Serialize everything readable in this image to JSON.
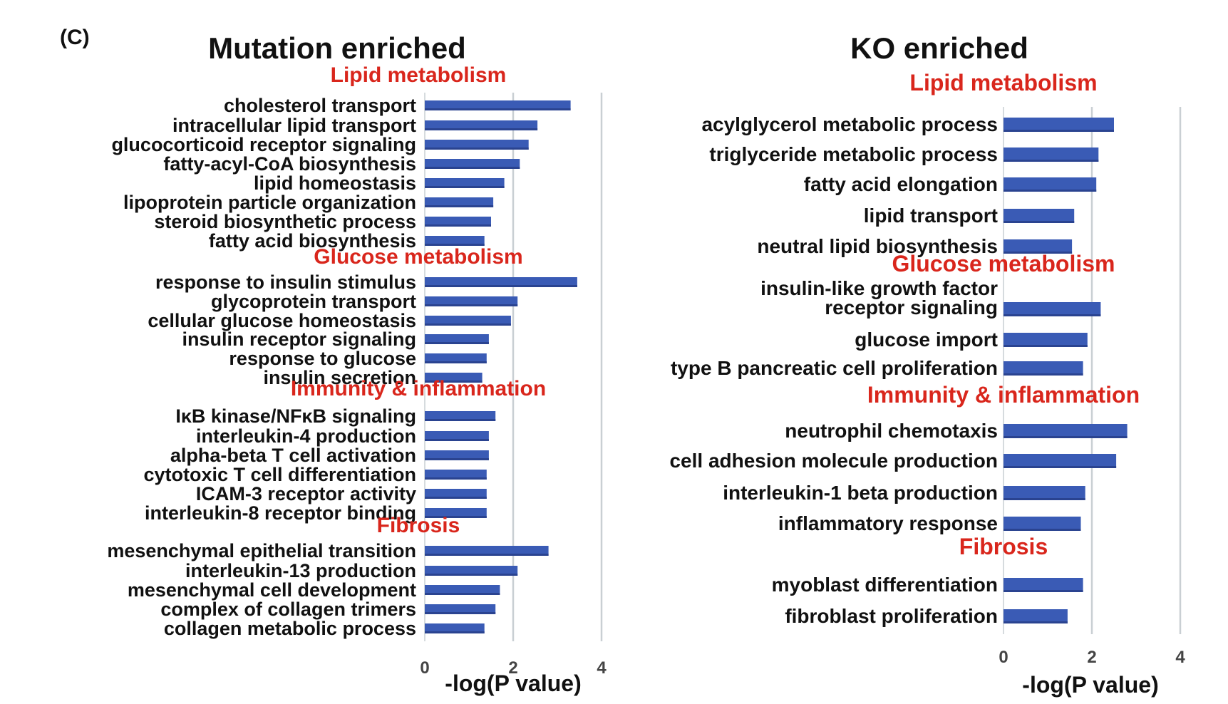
{
  "panel_label": "(C)",
  "colors": {
    "bar": "#3a5bb5",
    "category": "#d9261c",
    "axis": "#c9cfd3",
    "text": "#111111"
  },
  "chart_data": [
    {
      "type": "bar",
      "orientation": "horizontal",
      "title": "Mutation enriched",
      "xlabel": "-log(P value)",
      "xlim": [
        0,
        4
      ],
      "xticks": [
        "0",
        "2",
        "4"
      ],
      "groups": [
        {
          "name": "Lipid metabolism",
          "items": [
            {
              "label": "cholesterol transport",
              "value": 3.3
            },
            {
              "label": "intracellular lipid transport",
              "value": 2.55
            },
            {
              "label": "glucocorticoid receptor signaling",
              "value": 2.35
            },
            {
              "label": "fatty-acyl-CoA biosynthesis",
              "value": 2.15
            },
            {
              "label": "lipid homeostasis",
              "value": 1.8
            },
            {
              "label": "lipoprotein particle organization",
              "value": 1.55
            },
            {
              "label": "steroid biosynthetic process",
              "value": 1.5
            },
            {
              "label": "fatty acid biosynthesis",
              "value": 1.35
            }
          ]
        },
        {
          "name": "Glucose metabolism",
          "items": [
            {
              "label": "response to insulin stimulus",
              "value": 3.45
            },
            {
              "label": "glycoprotein transport",
              "value": 2.1
            },
            {
              "label": "cellular glucose homeostasis",
              "value": 1.95
            },
            {
              "label": "insulin receptor signaling",
              "value": 1.45
            },
            {
              "label": "response to glucose",
              "value": 1.4
            },
            {
              "label": "insulin secretion",
              "value": 1.3
            }
          ]
        },
        {
          "name": "Immunity & inflammation",
          "items": [
            {
              "label": "IκB kinase/NFκB signaling",
              "value": 1.6
            },
            {
              "label": "interleukin-4 production",
              "value": 1.45
            },
            {
              "label": "alpha-beta T cell activation",
              "value": 1.45
            },
            {
              "label": "cytotoxic T cell differentiation",
              "value": 1.4
            },
            {
              "label": "ICAM-3 receptor activity",
              "value": 1.4
            },
            {
              "label": "interleukin-8 receptor binding",
              "value": 1.4
            }
          ]
        },
        {
          "name": "Fibrosis",
          "items": [
            {
              "label": "mesenchymal epithelial transition",
              "value": 2.8
            },
            {
              "label": "interleukin-13 production",
              "value": 2.1
            },
            {
              "label": "mesenchymal cell development",
              "value": 1.7
            },
            {
              "label": "complex of collagen trimers",
              "value": 1.6
            },
            {
              "label": "collagen metabolic process",
              "value": 1.35
            }
          ]
        }
      ]
    },
    {
      "type": "bar",
      "orientation": "horizontal",
      "title": "KO enriched",
      "xlabel": "-log(P value)",
      "xlim": [
        0,
        4
      ],
      "xticks": [
        "0",
        "2",
        "4"
      ],
      "groups": [
        {
          "name": "Lipid metabolism",
          "items": [
            {
              "label": "acylglycerol metabolic process",
              "value": 2.5
            },
            {
              "label": "triglyceride metabolic process",
              "value": 2.15
            },
            {
              "label": "fatty acid elongation",
              "value": 2.1
            },
            {
              "label": "lipid transport",
              "value": 1.6
            },
            {
              "label": "neutral lipid biosynthesis",
              "value": 1.55
            }
          ]
        },
        {
          "name": "Glucose metabolism",
          "items": [
            {
              "label": "insulin-like growth factor receptor signaling",
              "value": 2.2
            },
            {
              "label": "glucose import",
              "value": 1.9
            },
            {
              "label": "type B pancreatic cell proliferation",
              "value": 1.8
            }
          ]
        },
        {
          "name": "Immunity & inflammation",
          "items": [
            {
              "label": "neutrophil chemotaxis",
              "value": 2.8
            },
            {
              "label": "cell adhesion molecule production",
              "value": 2.55
            },
            {
              "label": "interleukin-1 beta production",
              "value": 1.85
            },
            {
              "label": "inflammatory response",
              "value": 1.75
            }
          ]
        },
        {
          "name": "Fibrosis",
          "items": [
            {
              "label": "myoblast differentiation",
              "value": 1.8
            },
            {
              "label": "fibroblast proliferation",
              "value": 1.45
            }
          ]
        }
      ]
    }
  ]
}
